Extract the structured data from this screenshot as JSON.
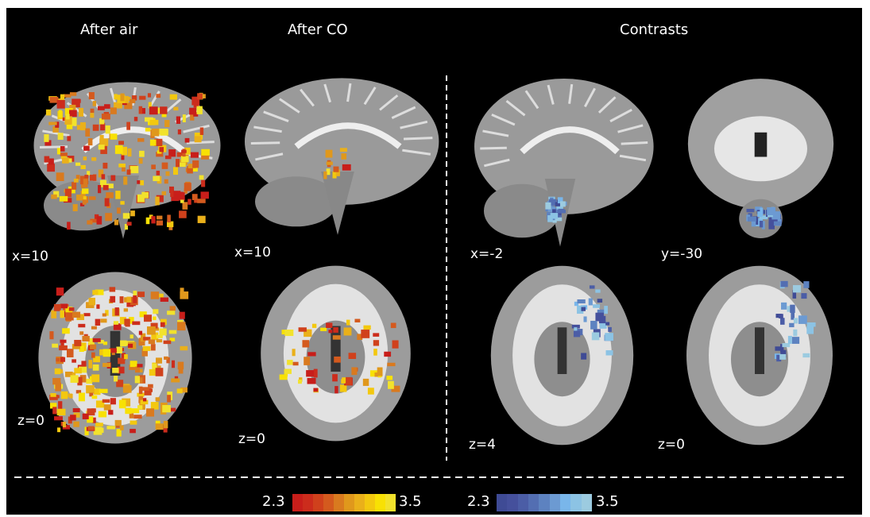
{
  "titles": {
    "after_air": "After air",
    "after_co": "After CO",
    "contrasts": "Contrasts"
  },
  "panels": [
    {
      "label": "x=10",
      "view": "sagittal",
      "overlay": "hot"
    },
    {
      "label": "x=10",
      "view": "sagittal",
      "overlay": "hot-small"
    },
    {
      "label": "x=-2",
      "view": "sagittal",
      "overlay": "blue"
    },
    {
      "label": "y=-30",
      "view": "coronal",
      "overlay": "blue"
    },
    {
      "label": "z=0",
      "view": "axial",
      "overlay": "hot"
    },
    {
      "label": "z=0",
      "view": "axial",
      "overlay": "hot-small"
    },
    {
      "label": "z=4",
      "view": "axial",
      "overlay": "blue"
    },
    {
      "label": "z=0",
      "view": "axial",
      "overlay": "blue"
    }
  ],
  "colorbars": [
    {
      "min": "2.3",
      "max": "3.5",
      "colors": [
        "#c81e1a",
        "#cc2c1c",
        "#d0411c",
        "#d45a1e",
        "#d97a1f",
        "#e0981c",
        "#eab01a",
        "#f3c80f",
        "#f8e104",
        "#f2e22c"
      ]
    },
    {
      "min": "2.3",
      "max": "3.5",
      "colors": [
        "#3f4b95",
        "#45509c",
        "#4b5da6",
        "#536eb2",
        "#5d82c0",
        "#6c9ad2",
        "#79b6ea",
        "#8cc3e4",
        "#9ccbe0"
      ]
    }
  ]
}
